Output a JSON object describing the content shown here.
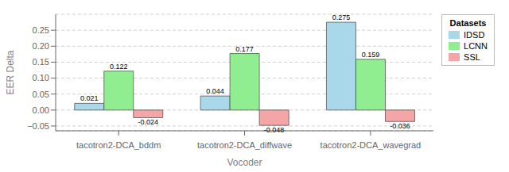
{
  "chart_data": {
    "type": "bar",
    "categories": [
      "tacotron2-DCA_bddm",
      "tacotron2-DCA_diffwave",
      "tacotron2-DCA_wavegrad"
    ],
    "series": [
      {
        "name": "IDSD",
        "color": "#a8d8ea",
        "values": [
          0.021,
          0.044,
          0.275
        ]
      },
      {
        "name": "LCNN",
        "color": "#90ee90",
        "values": [
          0.122,
          0.177,
          0.159
        ]
      },
      {
        "name": "SSL",
        "color": "#f4a6a6",
        "values": [
          -0.024,
          -0.048,
          -0.036
        ]
      }
    ],
    "xlabel": "Vocoder",
    "ylabel": "EER Delta",
    "ylim": [
      -0.065,
      0.3
    ],
    "yticks": [
      {
        "value": -0.05,
        "label": "−0.05"
      },
      {
        "value": 0,
        "label": "0.00"
      },
      0.05,
      {
        "value": 0.1,
        "label": "0.10"
      },
      0.15,
      {
        "value": 0.2,
        "label": "0.20"
      },
      0.25
    ],
    "grid": true,
    "data_labels": true,
    "legend": "upper right",
    "legend_title": "Datasets"
  }
}
